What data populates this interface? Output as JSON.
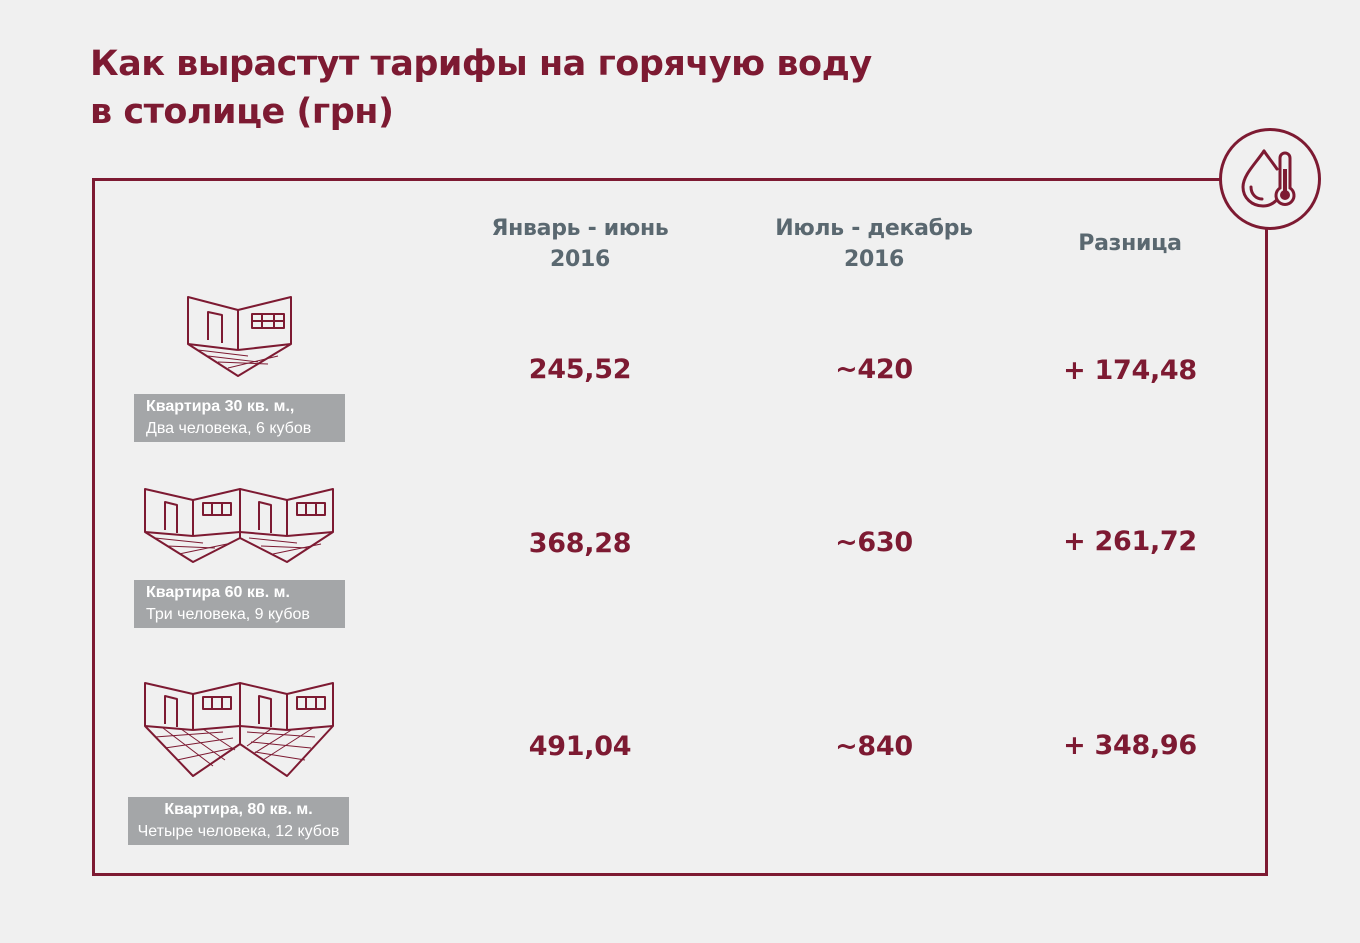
{
  "title": {
    "line1": "Как вырастут тарифы на горячую воду",
    "line2": "в столице (грн)"
  },
  "icon": "water-drop-thermometer-icon",
  "accent_color": "#7d1a32",
  "header_color": "#5a6870",
  "label_bg_color": "#a4a6a8",
  "columns": [
    {
      "line1": "Январь - июнь",
      "line2": "2016"
    },
    {
      "line1": "Июль - декабрь",
      "line2": "2016"
    },
    {
      "line1": "Разница",
      "line2": ""
    }
  ],
  "rows": [
    {
      "icon": "one-room-apartment-icon",
      "label_line1": "Квартира 30 кв. м.,",
      "label_line2": "Два человека, 6 кубов",
      "jan_jun": "245,52",
      "jul_dec": "~420",
      "diff": "+ 174,48"
    },
    {
      "icon": "two-room-apartment-icon",
      "label_line1": "Квартира 60 кв. м.",
      "label_line2": "Три человека, 9 кубов",
      "jan_jun": "368,28",
      "jul_dec": "~630",
      "diff": "+ 261,72"
    },
    {
      "icon": "two-room-apartment-tiled-icon",
      "label_line1": "Квартира, 80 кв. м.",
      "label_line2": "Четыре человека, 12 кубов",
      "jan_jun": "491,04",
      "jul_dec": "~840",
      "diff": "+ 348,96"
    }
  ],
  "chart_data": {
    "type": "table",
    "title": "Как вырастут тарифы на горячую воду в столице (грн)",
    "columns": [
      "Январь - июнь 2016",
      "Июль - декабрь 2016",
      "Разница"
    ],
    "rows": [
      {
        "label": "Квартира 30 кв. м., Два человека, 6 кубов",
        "values": [
          "245,52",
          "~420",
          "+ 174,48"
        ]
      },
      {
        "label": "Квартира 60 кв. м. Три человека, 9 кубов",
        "values": [
          "368,28",
          "~630",
          "+ 261,72"
        ]
      },
      {
        "label": "Квартира, 80 кв. м. Четыре человека, 12 кубов",
        "values": [
          "491,04",
          "~840",
          "+ 348,96"
        ]
      }
    ]
  }
}
